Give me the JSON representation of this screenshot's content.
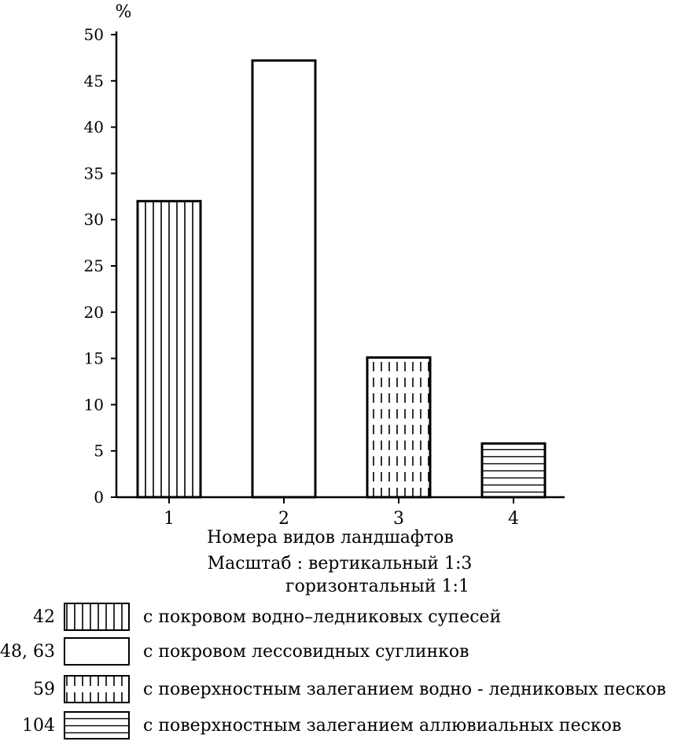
{
  "chart_data": {
    "type": "bar",
    "ylabel": "%",
    "ylim": [
      0,
      50
    ],
    "ytick_step": 5,
    "categories": [
      "1",
      "2",
      "3",
      "4"
    ],
    "values": [
      32,
      47.2,
      15.1,
      5.8
    ],
    "patterns": [
      "vertical-lines",
      "none",
      "dashed-vertical-lines",
      "horizontal-lines"
    ],
    "xlabel": "Номера видов ландшафтов",
    "scale_line_1": "Масштаб : вертикальный 1:3",
    "scale_line_2": "горизонтальный 1:1",
    "legend": [
      {
        "code": "42",
        "pattern": "vertical-lines",
        "label": "с покровом водно–ледниковых супесей"
      },
      {
        "code": "48, 63",
        "pattern": "none",
        "label": "с покровом лессовидных суглинков"
      },
      {
        "code": "59",
        "pattern": "dashed-vertical-lines",
        "label": "с поверхностным залеганием водно - ледниковых песков"
      },
      {
        "code": "104",
        "pattern": "horizontal-lines",
        "label": "с поверхностным залеганием аллювиальных песков"
      }
    ],
    "grid": false,
    "legend_placement": "bottom"
  },
  "colors": {
    "ink": "#000000",
    "background": "#ffffff"
  }
}
